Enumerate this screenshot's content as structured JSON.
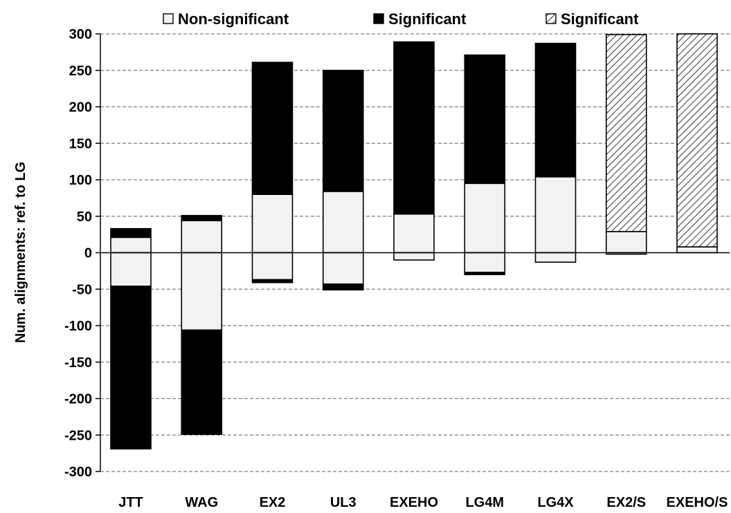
{
  "chart_data": {
    "type": "bar",
    "stacked": true,
    "ylabel": "Num. alignments: ref. to LG",
    "xlabel": "",
    "ylim": [
      -300,
      300
    ],
    "yticks": [
      "-300",
      "-250",
      "-200",
      "-150",
      "-100",
      "-50",
      "0",
      "50",
      "100",
      "150",
      "200",
      "250",
      "300"
    ],
    "categories": [
      "JTT",
      "WAG",
      "EX2",
      "UL3",
      "EXEHO",
      "LG4M",
      "LG4X",
      "EX2/S",
      "EXEHO/S"
    ],
    "grid": true,
    "legend_position": "top",
    "legend": [
      {
        "label": "Non-significant",
        "style": "light",
        "color": "#f2f2f2"
      },
      {
        "label": "Significant",
        "style": "solid",
        "color": "#000000"
      },
      {
        "label": "Significant",
        "style": "hatched",
        "color": "#000000"
      }
    ],
    "series": [
      {
        "name": "Non-significant",
        "positive": [
          21,
          44,
          80,
          84,
          53,
          95,
          104,
          29,
          8
        ],
        "negative": [
          -46,
          -106,
          -37,
          -43,
          -10,
          -27,
          -13,
          -2,
          0
        ]
      },
      {
        "name": "Significant",
        "positive": [
          12,
          7,
          181,
          166,
          236,
          176,
          183,
          0,
          0
        ],
        "negative": [
          -223,
          -143,
          -4,
          -8,
          0,
          -3,
          0,
          0,
          0
        ]
      },
      {
        "name": "Significant",
        "positive": [
          0,
          0,
          0,
          0,
          0,
          0,
          0,
          270,
          292
        ],
        "negative": [
          0,
          0,
          0,
          0,
          0,
          0,
          0,
          0,
          0
        ]
      }
    ]
  }
}
